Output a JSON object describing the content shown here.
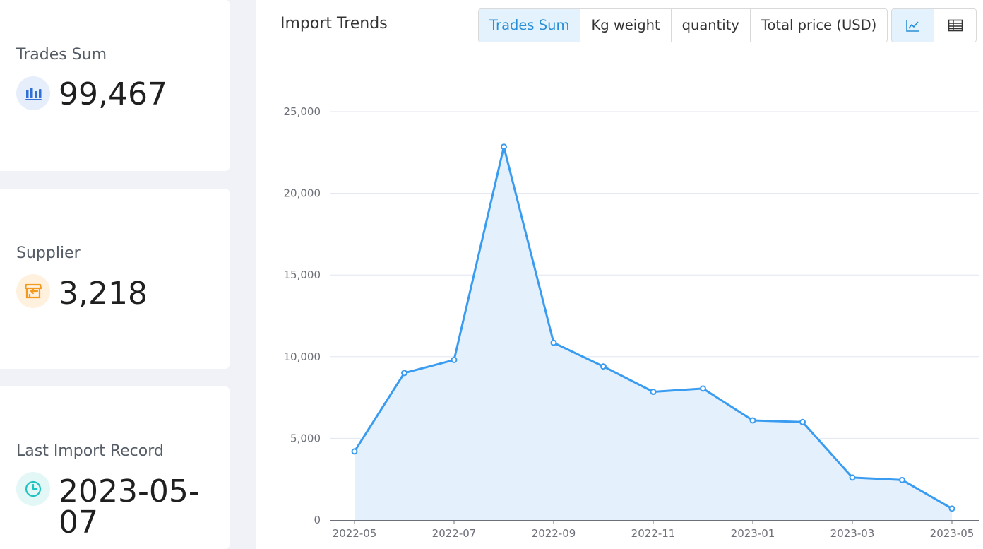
{
  "stats": {
    "trades_sum": {
      "label": "Trades Sum",
      "value": "99,467",
      "icon": "bar-chart-icon",
      "color": "#2f6fd6",
      "bg": "#e6eefc"
    },
    "supplier": {
      "label": "Supplier",
      "value": "3,218",
      "icon": "store-icon",
      "color": "#f39a1e",
      "bg": "#fff1de"
    },
    "last_import": {
      "label": "Last Import Record",
      "value": "2023-05-07",
      "icon": "clock-icon",
      "color": "#1fc3c0",
      "bg": "#e2f7f6"
    }
  },
  "panel": {
    "title": "Import Trends",
    "tabs": [
      "Trades Sum",
      "Kg weight",
      "quantity",
      "Total price (USD)"
    ],
    "active_tab": "Trades Sum",
    "view_buttons": [
      "line-chart-icon",
      "table-icon"
    ],
    "active_view": "line-chart-icon"
  },
  "colors": {
    "line": "#3a9cf0",
    "area": "#e4f1fc",
    "grid": "#e0e6f1",
    "axis": "#6e7079",
    "accent": "#2a8fd6"
  },
  "chart_data": {
    "type": "area",
    "title": "",
    "xlabel": "",
    "ylabel": "",
    "x": [
      "2022-05",
      "2022-06",
      "2022-07",
      "2022-08",
      "2022-09",
      "2022-10",
      "2022-11",
      "2022-12",
      "2023-01",
      "2023-02",
      "2023-03",
      "2023-04",
      "2023-05"
    ],
    "x_tick_labels": [
      "2022-05",
      "2022-07",
      "2022-09",
      "2022-11",
      "2023-01",
      "2023-03",
      "2023-05"
    ],
    "series": [
      {
        "values": [
          4200,
          9000,
          9800,
          22850,
          10850,
          9400,
          7850,
          8050,
          6100,
          6000,
          2600,
          2450,
          700
        ]
      }
    ],
    "ylim": [
      0,
      25000
    ],
    "y_ticks": [
      "0",
      "5,000",
      "10,000",
      "15,000",
      "20,000",
      "25,000"
    ],
    "grid": true,
    "legend": "none"
  }
}
